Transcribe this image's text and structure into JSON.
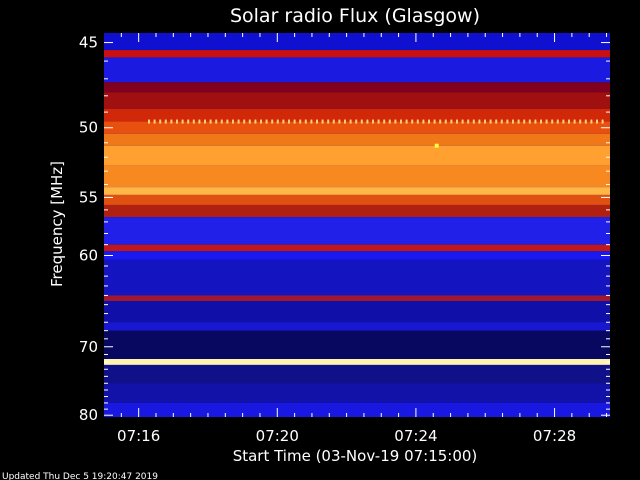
{
  "chart_data": {
    "type": "heatmap",
    "title": "Solar radio Flux (Glasgow)",
    "xlabel": "Start Time (03-Nov-19 07:15:00)",
    "ylabel": "Frequency [MHz]",
    "x_tick_labels": [
      "07:16",
      "07:20",
      "07:24",
      "07:28"
    ],
    "x_tick_minutes": [
      1,
      5,
      9,
      13
    ],
    "x_range_minutes": [
      0.0,
      14.6
    ],
    "y_tick_labels": [
      "45",
      "50",
      "55",
      "60",
      "70",
      "80"
    ],
    "y_tick_values": [
      45,
      50,
      55,
      60,
      70,
      80
    ],
    "y_range": [
      44.5,
      80.3
    ],
    "y_scale": "reciprocal",
    "background_color": "#000000",
    "bands": [
      {
        "f0": 44.5,
        "f1": 45.4,
        "color": "#1010d0"
      },
      {
        "f0": 45.4,
        "f1": 45.8,
        "color": "#c81010"
      },
      {
        "f0": 45.8,
        "f1": 47.2,
        "color": "#1a1ae0"
      },
      {
        "f0": 47.2,
        "f1": 47.8,
        "color": "#800020"
      },
      {
        "f0": 47.8,
        "f1": 48.8,
        "color": "#a01010"
      },
      {
        "f0": 48.8,
        "f1": 49.6,
        "color": "#d02808"
      },
      {
        "f0": 49.6,
        "f1": 50.4,
        "color": "#e85010"
      },
      {
        "f0": 50.4,
        "f1": 51.2,
        "color": "#f07818"
      },
      {
        "f0": 51.2,
        "f1": 52.6,
        "color": "#ffa030"
      },
      {
        "f0": 52.6,
        "f1": 54.2,
        "color": "#f88820"
      },
      {
        "f0": 54.2,
        "f1": 54.8,
        "color": "#ffb848"
      },
      {
        "f0": 54.8,
        "f1": 55.6,
        "color": "#e05010"
      },
      {
        "f0": 55.6,
        "f1": 56.6,
        "color": "#b02010"
      },
      {
        "f0": 56.6,
        "f1": 59.0,
        "color": "#2020e8"
      },
      {
        "f0": 59.0,
        "f1": 59.6,
        "color": "#c01818"
      },
      {
        "f0": 59.6,
        "f1": 60.4,
        "color": "#1a1af0"
      },
      {
        "f0": 60.4,
        "f1": 64.0,
        "color": "#1414c0"
      },
      {
        "f0": 64.0,
        "f1": 64.6,
        "color": "#a01830"
      },
      {
        "f0": 64.6,
        "f1": 67.0,
        "color": "#1010a8"
      },
      {
        "f0": 67.0,
        "f1": 68.0,
        "color": "#1818d0"
      },
      {
        "f0": 68.0,
        "f1": 71.6,
        "color": "#080860"
      },
      {
        "f0": 71.6,
        "f1": 72.4,
        "color": "#fff4b0"
      },
      {
        "f0": 72.4,
        "f1": 75.0,
        "color": "#101088"
      },
      {
        "f0": 75.0,
        "f1": 78.0,
        "color": "#1212a8"
      },
      {
        "f0": 78.0,
        "f1": 80.3,
        "color": "#1818e0"
      }
    ],
    "dotted_line": {
      "freq": 49.6,
      "color": "#ffd070"
    },
    "spot": {
      "freq": 51.2,
      "minute": 9.6,
      "color": "#ffff40"
    }
  },
  "footer": {
    "updated_text": "Updated Thu Dec  5 19:20:47 2019"
  }
}
